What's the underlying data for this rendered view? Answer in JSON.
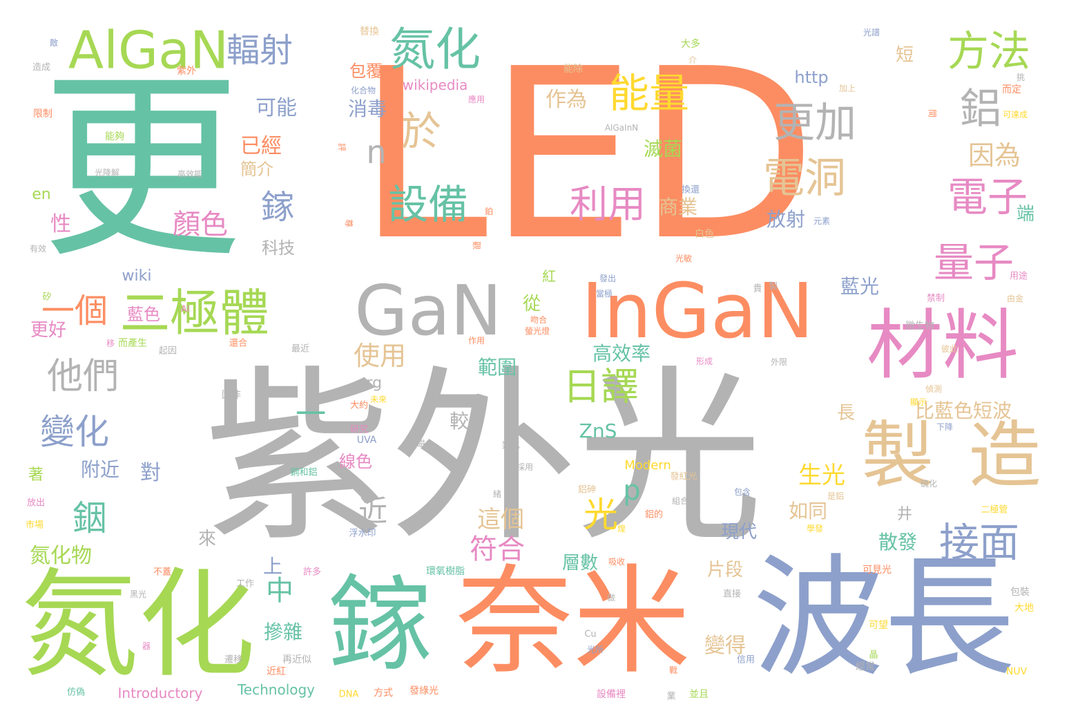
{
  "palette": {
    "gray": "#b3b3b3",
    "orange": "#fc8d62",
    "teal": "#66c2a5",
    "green": "#a6d854",
    "blue": "#8da0cb",
    "pink": "#e78ac3",
    "tan": "#e5c494",
    "yellow": "#ffd92f"
  },
  "words": [
    {
      "text": "LED",
      "color": "orange"
    },
    {
      "text": "紫外光",
      "color": "gray"
    },
    {
      "text": "更",
      "color": "teal"
    },
    {
      "text": "波長",
      "color": "blue"
    },
    {
      "text": "奈米",
      "color": "orange"
    },
    {
      "text": "氮化",
      "color": "green"
    },
    {
      "text": "鎵",
      "color": "teal"
    },
    {
      "text": "InGaN",
      "color": "orange"
    },
    {
      "text": "GaN",
      "color": "gray"
    },
    {
      "text": "材料",
      "color": "pink"
    },
    {
      "text": "製",
      "color": "tan"
    },
    {
      "text": "造",
      "color": "tan"
    },
    {
      "text": "AlGaN",
      "color": "green"
    },
    {
      "text": "二極體",
      "color": "green"
    },
    {
      "text": "氮化",
      "color": "teal"
    },
    {
      "text": "輻射",
      "color": "blue"
    },
    {
      "text": "方法",
      "color": "green"
    },
    {
      "text": "鋁",
      "color": "gray"
    },
    {
      "text": "更加",
      "color": "gray"
    },
    {
      "text": "電洞",
      "color": "tan"
    },
    {
      "text": "電子",
      "color": "pink"
    },
    {
      "text": "量子",
      "color": "pink"
    },
    {
      "text": "接面",
      "color": "blue"
    },
    {
      "text": "因為",
      "color": "tan"
    },
    {
      "text": "能量",
      "color": "yellow"
    },
    {
      "text": "於",
      "color": "tan"
    },
    {
      "text": "n",
      "color": "gray"
    },
    {
      "text": "設備",
      "color": "teal"
    },
    {
      "text": "利用",
      "color": "pink"
    },
    {
      "text": "日譯",
      "color": "green"
    },
    {
      "text": "光",
      "color": "yellow"
    },
    {
      "text": "p",
      "color": "teal"
    },
    {
      "text": "一個",
      "color": "orange"
    },
    {
      "text": "他們",
      "color": "gray"
    },
    {
      "text": "變化",
      "color": "blue"
    },
    {
      "text": "銦",
      "color": "teal"
    },
    {
      "text": "鎵",
      "color": "blue"
    },
    {
      "text": "顏色",
      "color": "pink"
    },
    {
      "text": "一",
      "color": "teal"
    },
    {
      "text": "近",
      "color": "gray"
    },
    {
      "text": "作為",
      "color": "tan"
    },
    {
      "text": "可能",
      "color": "blue"
    },
    {
      "text": "已經",
      "color": "orange"
    },
    {
      "text": "簡介",
      "color": "tan"
    },
    {
      "text": "滅菌",
      "color": "green"
    },
    {
      "text": "商業",
      "color": "tan"
    },
    {
      "text": "放射",
      "color": "blue"
    },
    {
      "text": "http",
      "color": "blue"
    },
    {
      "text": "消毒",
      "color": "blue"
    },
    {
      "text": "包覆",
      "color": "orange"
    },
    {
      "text": "wikipedia",
      "color": "pink"
    },
    {
      "text": "短",
      "color": "tan"
    },
    {
      "text": "生光",
      "color": "yellow"
    },
    {
      "text": "如同",
      "color": "tan"
    },
    {
      "text": "藍光",
      "color": "blue"
    },
    {
      "text": "比藍色短波",
      "color": "tan"
    },
    {
      "text": "長",
      "color": "tan"
    },
    {
      "text": "使用",
      "color": "tan"
    },
    {
      "text": "範圍",
      "color": "teal"
    },
    {
      "text": "高效率",
      "color": "teal"
    },
    {
      "text": "從",
      "color": "green"
    },
    {
      "text": "ZnS",
      "color": "teal"
    },
    {
      "text": "較",
      "color": "gray"
    },
    {
      "text": "org",
      "color": "gray"
    },
    {
      "text": "中",
      "color": "teal"
    },
    {
      "text": "符合",
      "color": "pink"
    },
    {
      "text": "這個",
      "color": "tan"
    },
    {
      "text": "線色",
      "color": "pink"
    },
    {
      "text": "附近",
      "color": "blue"
    },
    {
      "text": "對",
      "color": "blue"
    },
    {
      "text": "上",
      "color": "blue"
    },
    {
      "text": "摻雜",
      "color": "teal"
    },
    {
      "text": "層數",
      "color": "teal"
    },
    {
      "text": "片段",
      "color": "tan"
    },
    {
      "text": "變得",
      "color": "tan"
    },
    {
      "text": "現代",
      "color": "blue"
    },
    {
      "text": "散發",
      "color": "teal"
    },
    {
      "text": "井",
      "color": "gray"
    },
    {
      "text": "端",
      "color": "teal"
    },
    {
      "text": "氮化物",
      "color": "green"
    },
    {
      "text": "更好",
      "color": "pink"
    },
    {
      "text": "藍色",
      "color": "pink"
    },
    {
      "text": "科技",
      "color": "gray"
    },
    {
      "text": "wiki",
      "color": "blue"
    },
    {
      "text": "性",
      "color": "pink"
    },
    {
      "text": "en",
      "color": "green"
    },
    {
      "text": "著",
      "color": "green"
    },
    {
      "text": "來",
      "color": "gray"
    },
    {
      "text": "Modern",
      "color": "yellow"
    },
    {
      "text": "Introductory",
      "color": "pink"
    },
    {
      "text": "Technology",
      "color": "teal"
    },
    {
      "text": "UVA",
      "color": "blue"
    },
    {
      "text": "紅",
      "color": "green"
    },
    {
      "text": "敵",
      "color": "blue"
    },
    {
      "text": "造成",
      "color": "gray"
    },
    {
      "text": "限制",
      "color": "orange"
    },
    {
      "text": "能夠",
      "color": "green"
    },
    {
      "text": "光降解",
      "color": "gray"
    },
    {
      "text": "高效能",
      "color": "gray"
    },
    {
      "text": "有效",
      "color": "gray"
    },
    {
      "text": "替換",
      "color": "tan"
    },
    {
      "text": "紫外",
      "color": "orange"
    },
    {
      "text": "化合物",
      "color": "blue"
    },
    {
      "text": "應用",
      "color": "pink"
    },
    {
      "text": "能除",
      "color": "tan"
    },
    {
      "text": "大多",
      "color": "green"
    },
    {
      "text": "介",
      "color": "tan"
    },
    {
      "text": "加上",
      "color": "tan"
    },
    {
      "text": "光譜",
      "color": "blue"
    },
    {
      "text": "而定",
      "color": "orange"
    },
    {
      "text": "可達成",
      "color": "yellow"
    },
    {
      "text": "挑",
      "color": "gray"
    },
    {
      "text": "間",
      "color": "orange"
    },
    {
      "text": "AlGaInN",
      "color": "gray"
    },
    {
      "text": "換還",
      "color": "blue"
    },
    {
      "text": "轉換",
      "color": "orange"
    },
    {
      "text": "白色",
      "color": "tan"
    },
    {
      "text": "光敏",
      "color": "orange"
    },
    {
      "text": "元素",
      "color": "blue"
    },
    {
      "text": "用途",
      "color": "pink"
    },
    {
      "text": "由金",
      "color": "tan"
    },
    {
      "text": "發出",
      "color": "blue"
    },
    {
      "text": "當極",
      "color": "blue"
    },
    {
      "text": "吻合",
      "color": "orange"
    },
    {
      "text": "螢光燈",
      "color": "orange"
    },
    {
      "text": "作用",
      "color": "orange"
    },
    {
      "text": "禁制",
      "color": "pink"
    },
    {
      "text": "微生物",
      "color": "gray"
    },
    {
      "text": "彼此",
      "color": "tan"
    },
    {
      "text": "外限",
      "color": "gray"
    },
    {
      "text": "形成",
      "color": "pink"
    },
    {
      "text": "偵測",
      "color": "tan"
    },
    {
      "text": "顯示",
      "color": "yellow"
    },
    {
      "text": "下降",
      "color": "blue"
    },
    {
      "text": "硫化",
      "color": "gray"
    },
    {
      "text": "二極管",
      "color": "yellow"
    },
    {
      "text": "類似",
      "color": "gray"
    },
    {
      "text": "採用",
      "color": "gray"
    },
    {
      "text": "鋁砷",
      "color": "tan"
    },
    {
      "text": "發紅光",
      "color": "tan"
    },
    {
      "text": "組合",
      "color": "gray"
    },
    {
      "text": "包含",
      "color": "blue"
    },
    {
      "text": "是鋁",
      "color": "tan"
    },
    {
      "text": "鋁的",
      "color": "orange"
    },
    {
      "text": "學發",
      "color": "yellow"
    },
    {
      "text": "環氧樹脂",
      "color": "teal"
    },
    {
      "text": "吸收",
      "color": "orange"
    },
    {
      "text": "可見光",
      "color": "orange"
    },
    {
      "text": "包裝",
      "color": "gray"
    },
    {
      "text": "大地",
      "color": "yellow"
    },
    {
      "text": "可望",
      "color": "yellow"
    },
    {
      "text": "NUV",
      "color": "yellow"
    },
    {
      "text": "經常",
      "color": "gray"
    },
    {
      "text": "直接",
      "color": "gray"
    },
    {
      "text": "信用",
      "color": "blue"
    },
    {
      "text": "設備裡",
      "color": "pink"
    },
    {
      "text": "並且",
      "color": "green"
    },
    {
      "text": "業",
      "color": "gray"
    },
    {
      "text": "戰",
      "color": "orange"
    },
    {
      "text": "光所",
      "color": "blue"
    },
    {
      "text": "方式",
      "color": "orange"
    },
    {
      "text": "發綠光",
      "color": "orange"
    },
    {
      "text": "近紅",
      "color": "orange"
    },
    {
      "text": "再近似",
      "color": "gray"
    },
    {
      "text": "許多",
      "color": "pink"
    },
    {
      "text": "工作",
      "color": "gray"
    },
    {
      "text": "遷移",
      "color": "gray"
    },
    {
      "text": "DNA",
      "color": "yellow"
    },
    {
      "text": "仿偽",
      "color": "teal"
    },
    {
      "text": "黑光",
      "color": "gray"
    },
    {
      "text": "不蓋",
      "color": "orange"
    },
    {
      "text": "浮水印",
      "color": "blue"
    },
    {
      "text": "鋼和鋁",
      "color": "teal"
    },
    {
      "text": "磁",
      "color": "gray"
    },
    {
      "text": "研究",
      "color": "pink"
    },
    {
      "text": "大約",
      "color": "orange"
    },
    {
      "text": "未來",
      "color": "yellow"
    },
    {
      "text": "因非",
      "color": "gray"
    },
    {
      "text": "起因",
      "color": "gray"
    },
    {
      "text": "最近",
      "color": "gray"
    },
    {
      "text": "而產生",
      "color": "green"
    },
    {
      "text": "移",
      "color": "pink"
    },
    {
      "text": "矽",
      "color": "green"
    },
    {
      "text": "Al",
      "color": "pink"
    },
    {
      "text": "還合",
      "color": "orange"
    },
    {
      "text": "市場",
      "color": "yellow"
    },
    {
      "text": "放出",
      "color": "pink"
    },
    {
      "text": "觀",
      "color": "orange"
    },
    {
      "text": "尊",
      "color": "orange"
    },
    {
      "text": "貴",
      "color": "gray"
    },
    {
      "text": "製",
      "color": "gray"
    },
    {
      "text": "評",
      "color": "orange"
    },
    {
      "text": "鉑",
      "color": "orange"
    },
    {
      "text": "緒",
      "color": "gray"
    },
    {
      "text": "煌",
      "color": "yellow"
    },
    {
      "text": "晶",
      "color": "green"
    },
    {
      "text": "做",
      "color": "gray"
    },
    {
      "text": "器",
      "color": "pink"
    },
    {
      "text": "Cu",
      "color": "gray"
    }
  ]
}
